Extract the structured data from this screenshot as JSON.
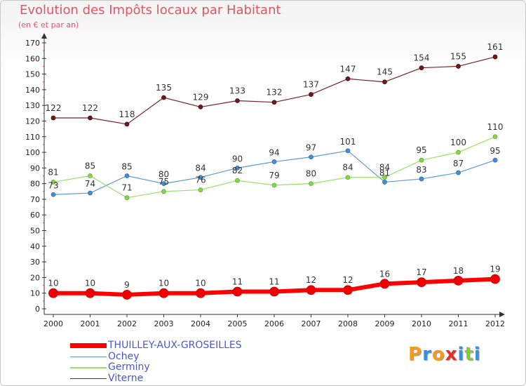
{
  "title": "Evolution des Impôts locaux par Habitant",
  "subtitle": "(en € et par an)",
  "logo": "Proxiti",
  "chart_data": {
    "type": "line",
    "title": "Evolution des Impôts locaux par Habitant",
    "subtitle": "(en € et par an)",
    "xlabel": "",
    "ylabel": "",
    "x": [
      "2000",
      "2001",
      "2002",
      "2003",
      "2004",
      "2005",
      "2006",
      "2007",
      "2008",
      "2009",
      "2010",
      "2011",
      "2012"
    ],
    "ylim": [
      0,
      170
    ],
    "yticks": [
      0,
      10,
      20,
      30,
      40,
      50,
      60,
      70,
      80,
      90,
      100,
      110,
      120,
      130,
      140,
      150,
      160,
      170
    ],
    "grid": false,
    "legend_position": "bottom-left",
    "series": [
      {
        "name": "THUILLEY-AUX-GROSEILLES",
        "color": "#ff0000",
        "values": [
          10,
          10,
          9,
          10,
          10,
          11,
          11,
          12,
          12,
          16,
          17,
          18,
          19
        ]
      },
      {
        "name": "Ochey",
        "color": "#5b9bd5",
        "values": [
          73,
          74,
          85,
          80,
          84,
          90,
          94,
          97,
          101,
          81,
          83,
          87,
          95
        ]
      },
      {
        "name": "Germiny",
        "color": "#99e066",
        "values": [
          81,
          85,
          71,
          75,
          76,
          82,
          79,
          80,
          84,
          84,
          95,
          100,
          110
        ]
      },
      {
        "name": "Viterne",
        "color": "#7a1f24",
        "values": [
          122,
          122,
          118,
          135,
          129,
          133,
          132,
          137,
          147,
          145,
          154,
          155,
          161
        ]
      }
    ]
  }
}
